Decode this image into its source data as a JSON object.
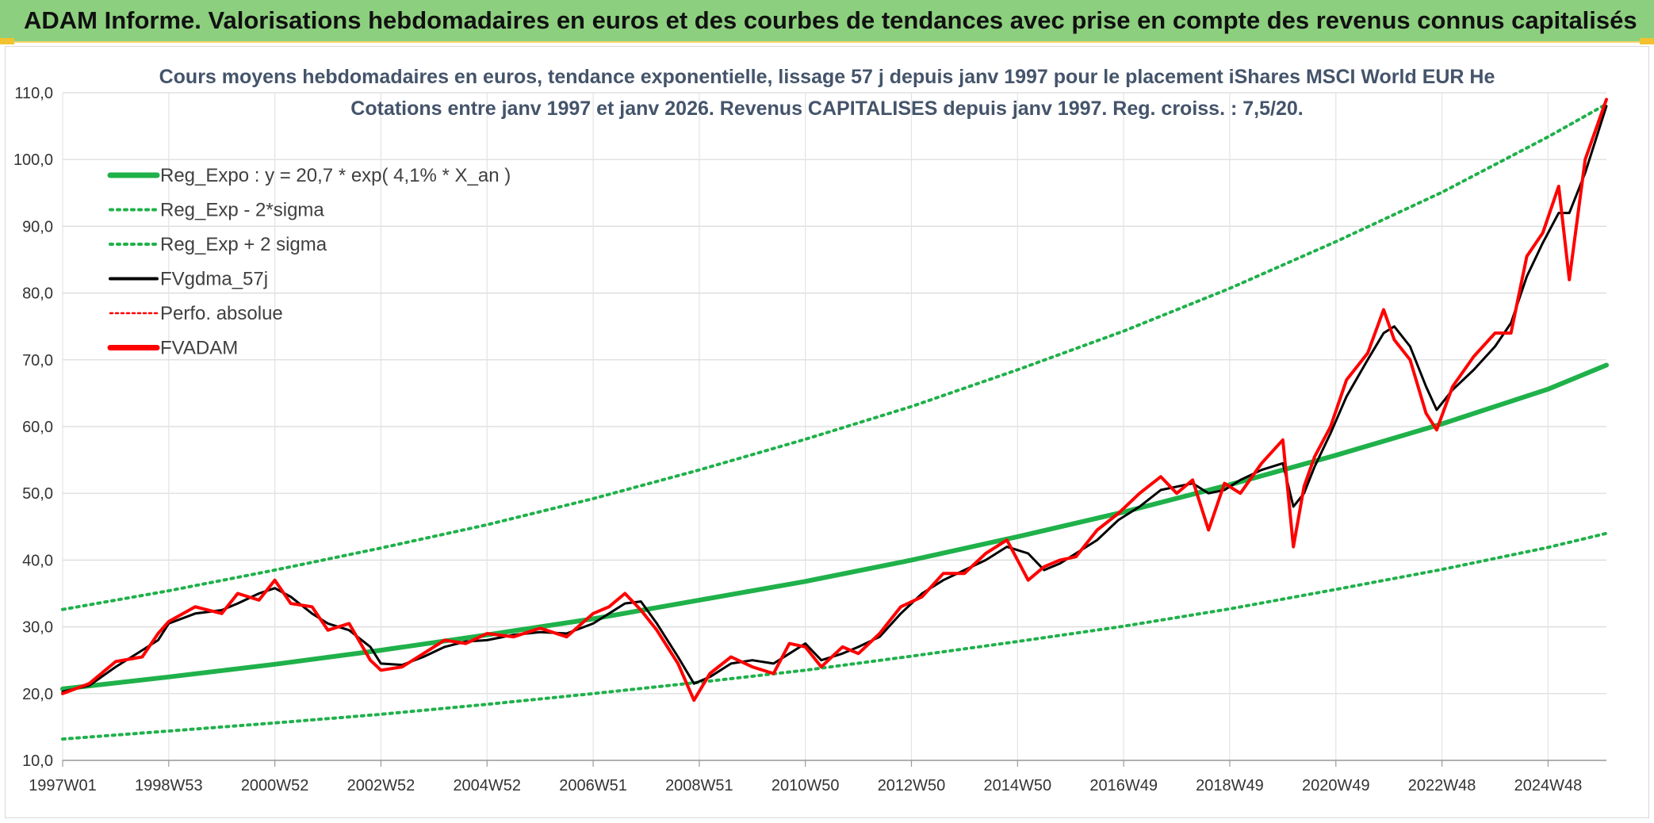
{
  "header": {
    "title": "ADAM Informe. Valorisations hebdomadaires en euros et des courbes de tendances avec prise en compte des revenus connus capitalisés"
  },
  "colors": {
    "banner": "#8ccf7e",
    "accent": "#f2c230",
    "trend": "#1fb14a",
    "price": "#ff0000",
    "smooth": "#000000"
  },
  "chart_data": {
    "type": "line",
    "title": [
      "Cours moyens hebdomadaires en euros, tendance exponentielle, lissage 57 j depuis janv 1997 pour le placement iShares MSCI World EUR He",
      "Cotations entre janv 1997 et janv 2026. Revenus CAPITALISES depuis janv 1997. Reg. croiss. : 7,5/20."
    ],
    "xlabel": "",
    "ylabel": "",
    "x_range": [
      1997.0,
      2026.1
    ],
    "ylim": [
      10,
      110
    ],
    "y_ticks": [
      "10,0",
      "20,0",
      "30,0",
      "40,0",
      "50,0",
      "60,0",
      "70,0",
      "80,0",
      "90,0",
      "100,0",
      "110,0"
    ],
    "x_ticks": [
      {
        "label": "1997W01",
        "x": 1997.0
      },
      {
        "label": "1998W53",
        "x": 1999.0
      },
      {
        "label": "2000W52",
        "x": 2001.0
      },
      {
        "label": "2002W52",
        "x": 2003.0
      },
      {
        "label": "2004W52",
        "x": 2005.0
      },
      {
        "label": "2006W51",
        "x": 2007.0
      },
      {
        "label": "2008W51",
        "x": 2009.0
      },
      {
        "label": "2010W50",
        "x": 2011.0
      },
      {
        "label": "2012W50",
        "x": 2013.0
      },
      {
        "label": "2014W50",
        "x": 2015.0
      },
      {
        "label": "2016W49",
        "x": 2017.0
      },
      {
        "label": "2018W49",
        "x": 2019.0
      },
      {
        "label": "2020W49",
        "x": 2021.0
      },
      {
        "label": "2022W48",
        "x": 2023.0
      },
      {
        "label": "2024W48",
        "x": 2025.0
      }
    ],
    "grid": true,
    "legend_position": "top-left",
    "legend": [
      {
        "label": "Reg_Expo : y = 20,7 * exp( 4,1% *  X_an )",
        "style": "solid-thick",
        "color": "#1fb14a"
      },
      {
        "label": "Reg_Exp - 2*sigma",
        "style": "dotted",
        "color": "#1fb14a"
      },
      {
        "label": "Reg_Exp + 2 sigma",
        "style": "dotted",
        "color": "#1fb14a"
      },
      {
        "label": "FVgdma_57j",
        "style": "solid",
        "color": "#000000"
      },
      {
        "label": "Perfo. absolue",
        "style": "dotted-thin",
        "color": "#ff0000"
      },
      {
        "label": "FVADAM",
        "style": "solid-thick",
        "color": "#ff0000"
      }
    ],
    "series": [
      {
        "name": "Reg_Expo : y = 20,7 * exp( 4,1% *  X_an )",
        "x": [
          1997.0,
          1999.0,
          2001.0,
          2003.0,
          2005.0,
          2007.0,
          2009.0,
          2011.0,
          2013.0,
          2015.0,
          2017.0,
          2019.0,
          2021.0,
          2023.0,
          2025.0,
          2026.1
        ],
        "values": [
          20.7,
          22.5,
          24.4,
          26.5,
          28.8,
          31.2,
          34.0,
          36.8,
          40.0,
          43.5,
          47.2,
          51.3,
          55.7,
          60.4,
          65.6,
          69.2
        ]
      },
      {
        "name": "Reg_Exp - 2*sigma",
        "x": [
          1997.0,
          1999.0,
          2001.0,
          2003.0,
          2005.0,
          2007.0,
          2009.0,
          2011.0,
          2013.0,
          2015.0,
          2017.0,
          2019.0,
          2021.0,
          2023.0,
          2025.0,
          2026.1
        ],
        "values": [
          13.2,
          14.4,
          15.6,
          16.9,
          18.4,
          20.0,
          21.7,
          23.5,
          25.6,
          27.8,
          30.1,
          32.7,
          35.6,
          38.6,
          41.9,
          44.0
        ]
      },
      {
        "name": "Reg_Exp + 2 sigma",
        "x": [
          1997.0,
          1999.0,
          2001.0,
          2003.0,
          2005.0,
          2007.0,
          2009.0,
          2011.0,
          2013.0,
          2015.0,
          2017.0,
          2019.0,
          2021.0,
          2023.0,
          2025.0,
          2026.1
        ],
        "values": [
          32.6,
          35.4,
          38.5,
          41.8,
          45.3,
          49.2,
          53.5,
          58.1,
          63.0,
          68.5,
          74.3,
          80.7,
          87.7,
          95.1,
          103.4,
          108.3
        ]
      },
      {
        "name": "FVgdma_57j",
        "x": [
          1997.0,
          1997.5,
          1998.0,
          1998.5,
          1998.8,
          1999.0,
          1999.5,
          2000.0,
          2000.3,
          2000.7,
          2001.0,
          2001.3,
          2001.7,
          2002.0,
          2002.4,
          2002.8,
          2003.0,
          2003.4,
          2003.8,
          2004.2,
          2004.6,
          2005.0,
          2005.5,
          2006.0,
          2006.5,
          2007.0,
          2007.3,
          2007.6,
          2007.9,
          2008.2,
          2008.6,
          2008.9,
          2009.2,
          2009.6,
          2010.0,
          2010.4,
          2010.7,
          2011.0,
          2011.3,
          2011.7,
          2012.0,
          2012.4,
          2012.8,
          2013.2,
          2013.6,
          2014.0,
          2014.4,
          2014.8,
          2015.2,
          2015.5,
          2015.8,
          2016.1,
          2016.5,
          2016.9,
          2017.3,
          2017.7,
          2018.0,
          2018.3,
          2018.6,
          2018.9,
          2019.2,
          2019.6,
          2020.0,
          2020.2,
          2020.4,
          2020.6,
          2020.9,
          2021.2,
          2021.6,
          2021.9,
          2022.1,
          2022.4,
          2022.7,
          2022.9,
          2023.2,
          2023.6,
          2024.0,
          2024.3,
          2024.6,
          2024.9,
          2025.2,
          2025.4,
          2025.7,
          2026.1
        ],
        "values": [
          20.3,
          21.2,
          24.0,
          26.5,
          28.0,
          30.5,
          32.0,
          32.5,
          33.5,
          35.0,
          35.8,
          34.5,
          32.0,
          30.5,
          29.5,
          27.0,
          24.5,
          24.3,
          25.5,
          27.0,
          27.8,
          28.0,
          28.8,
          29.2,
          29.0,
          30.5,
          32.0,
          33.5,
          33.8,
          30.5,
          25.5,
          21.5,
          22.5,
          24.5,
          25.0,
          24.5,
          26.0,
          27.5,
          25.0,
          26.0,
          27.0,
          28.5,
          32.0,
          35.0,
          37.0,
          38.5,
          40.0,
          42.0,
          41.0,
          38.5,
          39.5,
          41.0,
          43.0,
          46.0,
          48.0,
          50.5,
          51.0,
          51.5,
          50.0,
          50.5,
          52.0,
          53.5,
          54.5,
          48.0,
          50.0,
          54.0,
          59.0,
          64.5,
          70.0,
          74.0,
          75.0,
          72.0,
          66.0,
          62.5,
          65.5,
          68.5,
          72.0,
          75.5,
          82.5,
          87.5,
          92.0,
          92.0,
          98.0,
          108.0
        ]
      },
      {
        "name": "FVADAM",
        "x": [
          1997.0,
          1997.5,
          1998.0,
          1998.5,
          1998.8,
          1999.0,
          1999.5,
          2000.0,
          2000.3,
          2000.7,
          2001.0,
          2001.3,
          2001.7,
          2002.0,
          2002.4,
          2002.8,
          2003.0,
          2003.4,
          2003.8,
          2004.2,
          2004.6,
          2005.0,
          2005.5,
          2006.0,
          2006.5,
          2007.0,
          2007.3,
          2007.6,
          2007.9,
          2008.2,
          2008.6,
          2008.9,
          2009.2,
          2009.6,
          2010.0,
          2010.4,
          2010.7,
          2011.0,
          2011.3,
          2011.7,
          2012.0,
          2012.4,
          2012.8,
          2013.2,
          2013.6,
          2014.0,
          2014.4,
          2014.8,
          2015.2,
          2015.5,
          2015.8,
          2016.1,
          2016.5,
          2016.9,
          2017.3,
          2017.7,
          2018.0,
          2018.3,
          2018.6,
          2018.9,
          2019.2,
          2019.6,
          2020.0,
          2020.2,
          2020.4,
          2020.6,
          2020.9,
          2021.2,
          2021.6,
          2021.9,
          2022.1,
          2022.4,
          2022.7,
          2022.9,
          2023.2,
          2023.6,
          2024.0,
          2024.3,
          2024.6,
          2024.9,
          2025.2,
          2025.4,
          2025.7,
          2026.1
        ],
        "values": [
          20.0,
          21.5,
          24.8,
          25.5,
          29.0,
          30.8,
          33.0,
          32.0,
          35.0,
          34.0,
          37.0,
          33.5,
          33.0,
          29.5,
          30.5,
          25.0,
          23.5,
          24.0,
          26.0,
          28.0,
          27.5,
          29.0,
          28.5,
          29.8,
          28.5,
          32.0,
          33.0,
          35.0,
          32.5,
          29.5,
          24.5,
          19.0,
          23.0,
          25.5,
          24.0,
          23.0,
          27.5,
          27.0,
          24.0,
          27.0,
          26.0,
          29.0,
          33.0,
          34.5,
          38.0,
          38.0,
          41.0,
          43.0,
          37.0,
          39.0,
          40.0,
          40.5,
          44.5,
          47.0,
          50.0,
          52.5,
          50.0,
          52.0,
          44.5,
          51.5,
          50.0,
          54.5,
          58.0,
          42.0,
          51.0,
          55.5,
          60.0,
          67.0,
          71.0,
          77.5,
          73.0,
          70.0,
          62.0,
          59.5,
          66.0,
          70.5,
          74.0,
          74.0,
          85.5,
          89.0,
          96.0,
          82.0,
          100.0,
          109.0
        ]
      }
    ]
  }
}
